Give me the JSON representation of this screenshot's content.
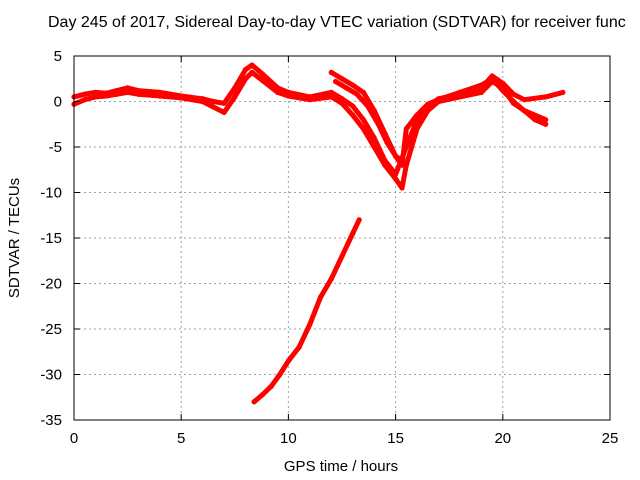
{
  "chart_data": {
    "type": "scatter",
    "title": "Day 245 of 2017, Sidereal Day-to-day VTEC variation (SDTVAR) for receiver func",
    "xlabel": "GPS time / hours",
    "ylabel": "SDTVAR / TECUs",
    "xlim": [
      0,
      25
    ],
    "ylim": [
      -35,
      5
    ],
    "grid": true,
    "xticks": [
      0,
      5,
      10,
      15,
      20,
      25
    ],
    "yticks": [
      5,
      0,
      -5,
      -10,
      -15,
      -20,
      -25,
      -30,
      -35
    ],
    "series_color": "#ff0000",
    "series": [
      {
        "name": "trace-1",
        "x": [
          0,
          0.5,
          1,
          1.5,
          2,
          2.5,
          3,
          4,
          5,
          6,
          6.5,
          7,
          7.5,
          8,
          8.3,
          8.8,
          9.5,
          10,
          11,
          12,
          12.5,
          13,
          13.5,
          14,
          14.5,
          15,
          15.5,
          16,
          16.5,
          17,
          18,
          19,
          19.5,
          20,
          20.5,
          21,
          22,
          22.8
        ],
        "y": [
          0.5,
          0.8,
          1.0,
          0.9,
          1.2,
          1.5,
          1.2,
          1.0,
          0.6,
          0.3,
          0.0,
          -0.2,
          1.5,
          3.5,
          4.0,
          3.0,
          1.5,
          1.0,
          0.5,
          1.0,
          0.3,
          -0.5,
          -2.0,
          -4.0,
          -6.5,
          -8.0,
          -5.0,
          -2.0,
          -0.5,
          0.3,
          0.8,
          1.5,
          2.8,
          2.0,
          0.8,
          0.2,
          0.5,
          1.0
        ]
      },
      {
        "name": "trace-2",
        "x": [
          0,
          0.5,
          1,
          1.5,
          2,
          2.5,
          3,
          4,
          5,
          6,
          6.5,
          7,
          7.5,
          8,
          8.3,
          8.8,
          9.5,
          10,
          11,
          12,
          12.5,
          13,
          13.5,
          14,
          14.5,
          15,
          15.3,
          15.5,
          16,
          16.5,
          17,
          18,
          19,
          19.5,
          20,
          20.5,
          21,
          22
        ],
        "y": [
          -0.3,
          0.2,
          0.5,
          0.6,
          0.8,
          1.0,
          0.8,
          0.6,
          0.4,
          0.0,
          -0.6,
          -1.2,
          0.5,
          2.5,
          3.2,
          2.3,
          1.0,
          0.6,
          0.2,
          0.5,
          -0.2,
          -1.5,
          -3.0,
          -5.0,
          -7.0,
          -8.5,
          -9.5,
          -7.0,
          -3.0,
          -1.0,
          0.0,
          0.5,
          1.0,
          2.2,
          1.5,
          -0.2,
          -1.0,
          -2.0
        ]
      },
      {
        "name": "trace-3",
        "x": [
          12,
          12.5,
          13,
          13.5,
          14,
          14.5,
          15,
          15.3,
          15.5,
          16,
          16.5,
          17,
          17.5,
          18,
          19,
          19.5,
          20,
          20.5,
          21,
          21.5,
          22
        ],
        "y": [
          3.2,
          2.5,
          1.8,
          1.0,
          -1.0,
          -3.5,
          -6.0,
          -7.0,
          -3.0,
          -1.5,
          -0.3,
          0.2,
          0.6,
          1.0,
          1.8,
          2.5,
          1.2,
          0.0,
          -1.0,
          -2.0,
          -2.5
        ]
      },
      {
        "name": "trace-4",
        "x": [
          12.2,
          12.7,
          13.2,
          13.7,
          14.2,
          14.6,
          15,
          15.3
        ],
        "y": [
          2.2,
          1.5,
          0.8,
          -0.5,
          -2.5,
          -4.5,
          -6.0,
          -6.5
        ]
      },
      {
        "name": "trace-5",
        "x": [
          8.4,
          8.8,
          9.2,
          9.6,
          10,
          10.5,
          11,
          11.5,
          12,
          12.5,
          13,
          13.3
        ],
        "y": [
          -33,
          -32.2,
          -31.3,
          -30,
          -28.5,
          -27,
          -24.5,
          -21.5,
          -19.5,
          -17,
          -14.5,
          -13
        ]
      }
    ]
  }
}
